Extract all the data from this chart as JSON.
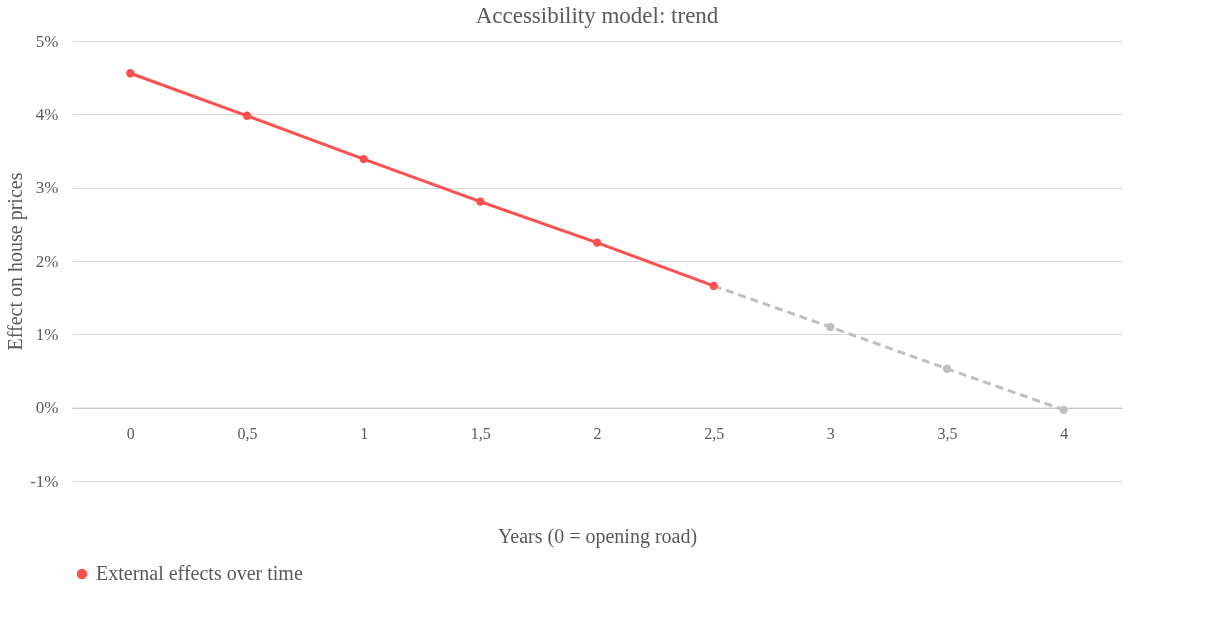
{
  "chart_data": {
    "type": "line",
    "title": "Accessibility model: trend",
    "xlabel": "Years (0 = opening road)",
    "ylabel": "Effect on house prices",
    "categories": [
      "0",
      "0,5",
      "1",
      "1,5",
      "2",
      "2,5",
      "3",
      "3,5",
      "4"
    ],
    "series": [
      {
        "color": "#bfbfbf",
        "line_style": "dashed",
        "values": [
          null,
          null,
          null,
          null,
          null,
          1.66,
          1.1,
          0.53,
          -0.03
        ]
      },
      {
        "name": "External effects over time",
        "color": "#ff5050",
        "line_style": "solid",
        "values": [
          4.56,
          3.98,
          3.39,
          2.81,
          2.25,
          1.66,
          null,
          null,
          null
        ]
      }
    ],
    "marker": "circle",
    "ylim": [
      -1,
      5
    ],
    "yticks": [
      {
        "value": -1,
        "label": "-1%"
      },
      {
        "value": 0,
        "label": "0%"
      },
      {
        "value": 1,
        "label": "1%"
      },
      {
        "value": 2,
        "label": "2%"
      },
      {
        "value": 3,
        "label": "3%"
      },
      {
        "value": 4,
        "label": "4%"
      },
      {
        "value": 5,
        "label": "5%"
      }
    ],
    "grid": "y",
    "legend": "bottom"
  }
}
